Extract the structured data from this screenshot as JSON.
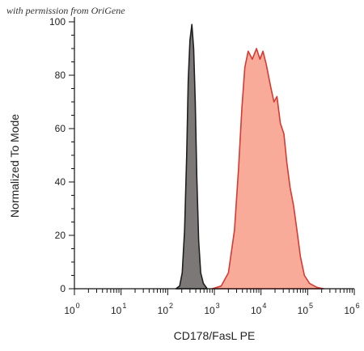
{
  "watermark": "with permission from OriGene",
  "chart_data": {
    "type": "area",
    "xlabel": "CD178/FasL PE",
    "ylabel": "Normalized To Mode",
    "x_scale": "log",
    "xlim": [
      1,
      1000000
    ],
    "ylim": [
      0,
      100
    ],
    "y_ticks": [
      0,
      20,
      40,
      60,
      80,
      100
    ],
    "x_ticks": [
      {
        "value": 1,
        "base": "10",
        "exp": "0"
      },
      {
        "value": 10,
        "base": "10",
        "exp": "1"
      },
      {
        "value": 100,
        "base": "10",
        "exp": "2"
      },
      {
        "value": 1000,
        "base": "10",
        "exp": "3"
      },
      {
        "value": 10000,
        "base": "10",
        "exp": "4"
      },
      {
        "value": 100000,
        "base": "10",
        "exp": "5"
      },
      {
        "value": 1000000,
        "base": "10",
        "exp": "6"
      }
    ],
    "series": [
      {
        "fill": "#7b7877",
        "stroke": "#1f1f1f",
        "points": [
          [
            150,
            0
          ],
          [
            180,
            1
          ],
          [
            205,
            6
          ],
          [
            230,
            22
          ],
          [
            255,
            50
          ],
          [
            275,
            78
          ],
          [
            300,
            93
          ],
          [
            330,
            99
          ],
          [
            360,
            90
          ],
          [
            390,
            70
          ],
          [
            420,
            42
          ],
          [
            460,
            18
          ],
          [
            510,
            6
          ],
          [
            580,
            2
          ],
          [
            700,
            0
          ]
        ]
      },
      {
        "fill": "#f7ab98",
        "stroke": "#d63a33",
        "points": [
          [
            900,
            0
          ],
          [
            1400,
            1
          ],
          [
            2000,
            6
          ],
          [
            2700,
            22
          ],
          [
            3300,
            45
          ],
          [
            3900,
            68
          ],
          [
            4500,
            83
          ],
          [
            5300,
            89
          ],
          [
            6500,
            86
          ],
          [
            8000,
            90
          ],
          [
            9500,
            86
          ],
          [
            11000,
            89
          ],
          [
            13000,
            84
          ],
          [
            16000,
            76
          ],
          [
            19000,
            70
          ],
          [
            22000,
            72
          ],
          [
            26000,
            62
          ],
          [
            31000,
            58
          ],
          [
            36000,
            47
          ],
          [
            42000,
            38
          ],
          [
            50000,
            31
          ],
          [
            60000,
            21
          ],
          [
            70000,
            12
          ],
          [
            85000,
            5
          ],
          [
            110000,
            2
          ],
          [
            160000,
            0.5
          ],
          [
            220000,
            0
          ]
        ]
      }
    ]
  }
}
